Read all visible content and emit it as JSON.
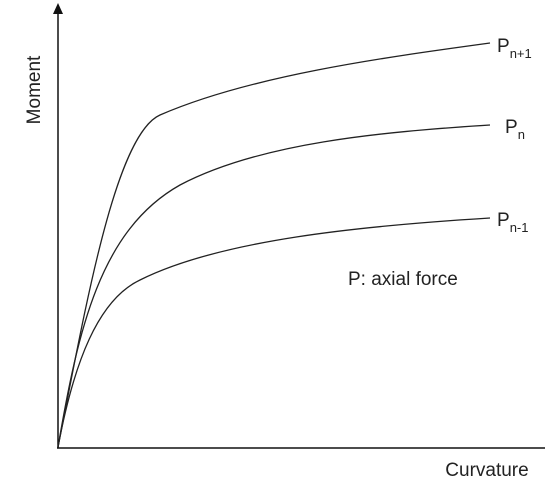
{
  "y_axis_label": "Moment",
  "x_axis_label": "Curvature",
  "curves": [
    {
      "label": "P",
      "subscript": "n+1"
    },
    {
      "label": "P",
      "subscript": "n"
    },
    {
      "label": "P",
      "subscript": "n-1"
    }
  ],
  "annotation": "P: axial force"
}
